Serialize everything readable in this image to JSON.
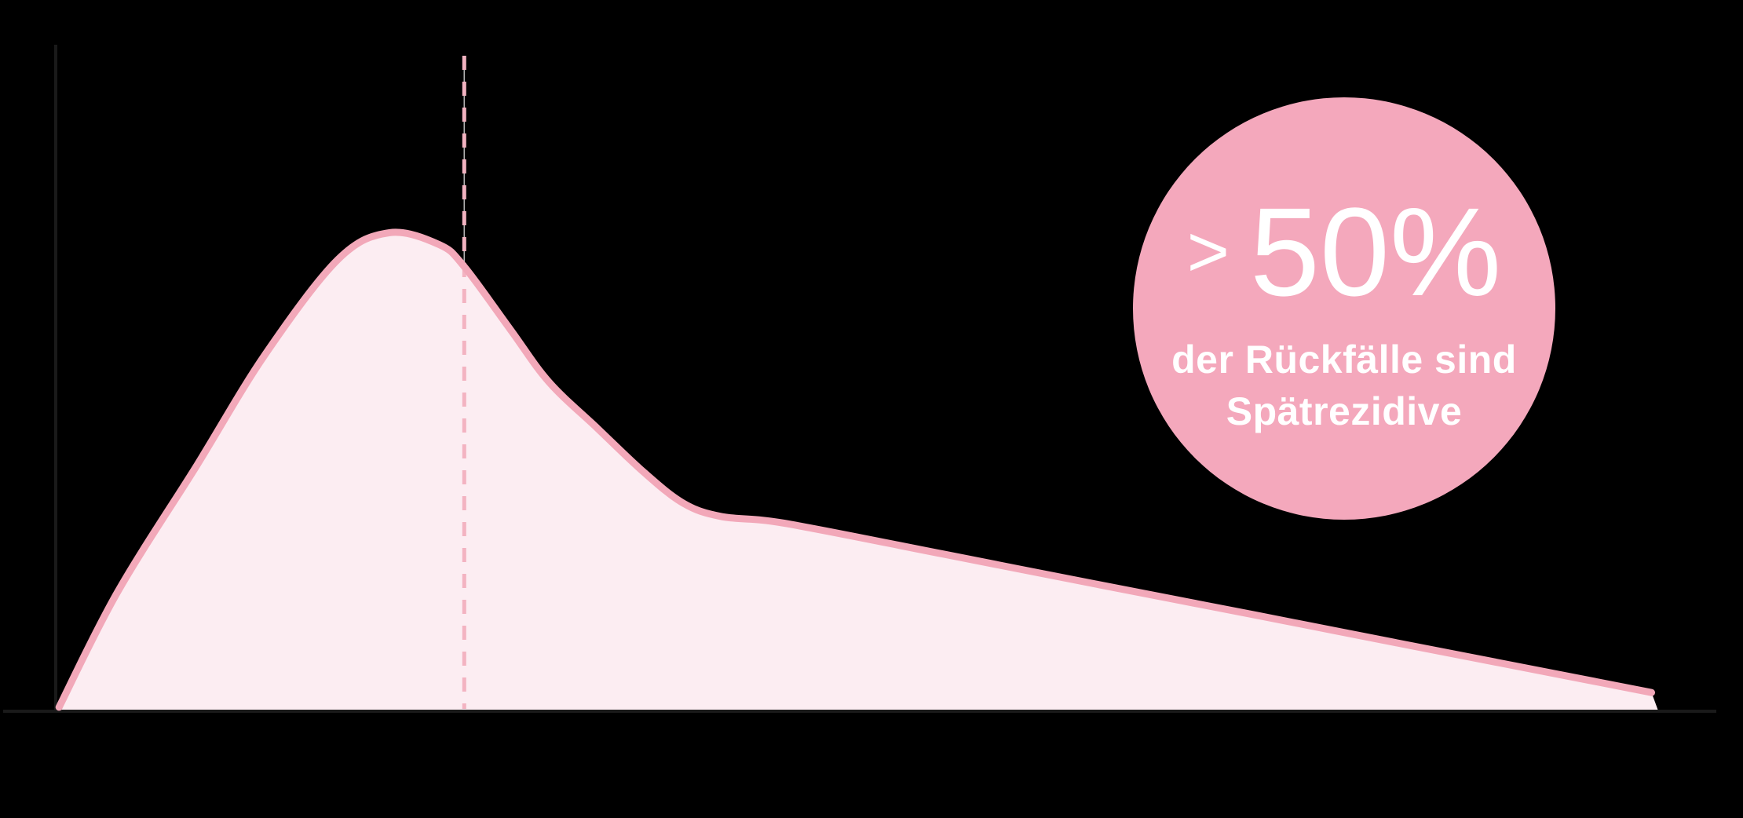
{
  "canvas": {
    "background": "#000000"
  },
  "colors": {
    "axis": "#1A1A1A",
    "curve_stroke": "#F2A8B9",
    "curve_fill": "#FCEDF2",
    "marker_dash": "#F3B3C1",
    "marker_connector": "rgba(255,255,255,0.7)",
    "badge_fill": "#F4A8BC",
    "badge_text": "#FFFFFF"
  },
  "badge": {
    "gt_symbol": ">",
    "percent_value": "50%",
    "line1": "der Rückfälle sind",
    "line2": "Spätrezidive"
  },
  "chart_data": {
    "type": "area",
    "title": "",
    "xlabel": "",
    "ylabel": "",
    "x_ticks": [],
    "y_ticks": [],
    "grid": false,
    "x_range_percent": [
      0,
      100
    ],
    "y_range_percent": [
      0,
      100
    ],
    "x_percent": [
      0.2,
      3.7,
      8.5,
      12.6,
      17.0,
      20.1,
      23.1,
      24.6,
      27.4,
      29.7,
      32.6,
      35.4,
      37.8,
      40.1,
      43.9,
      53.4,
      62.8,
      72.3,
      81.7,
      91.2,
      96.1
    ],
    "y_percent": [
      0.6,
      17.8,
      36.9,
      53.5,
      67.8,
      71.8,
      70.0,
      66.7,
      57.2,
      49.4,
      42.5,
      35.9,
      31.2,
      29.2,
      28.2,
      23.6,
      19.0,
      14.4,
      9.8,
      5.2,
      2.8
    ],
    "peak_x_percent": 20.1,
    "marker_line_x_percent": 24.6,
    "annotation": "> 50% der Rückfälle sind Spätrezidive",
    "legend": []
  }
}
